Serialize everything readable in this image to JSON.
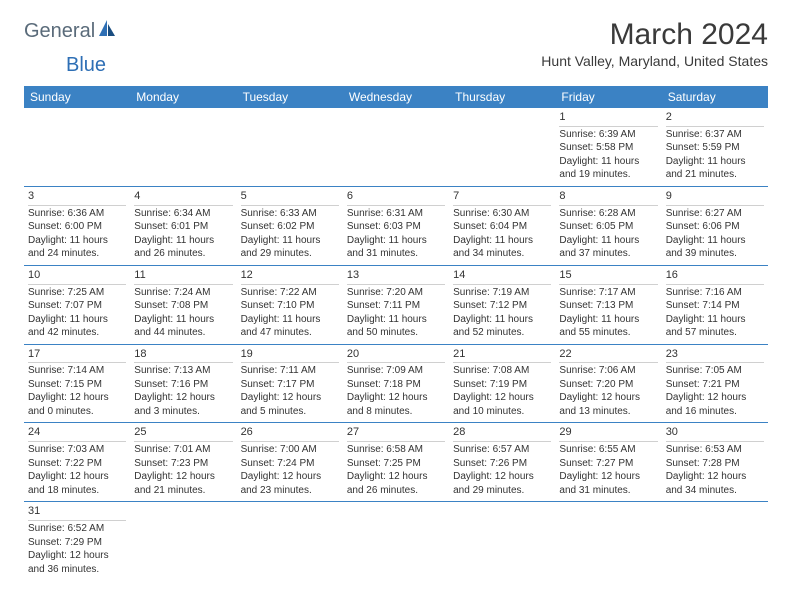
{
  "logo": {
    "text1": "General",
    "text2": "Blue"
  },
  "title": "March 2024",
  "location": "Hunt Valley, Maryland, United States",
  "dayHeaders": [
    "Sunday",
    "Monday",
    "Tuesday",
    "Wednesday",
    "Thursday",
    "Friday",
    "Saturday"
  ],
  "colors": {
    "headerBg": "#3b82c4",
    "headerText": "#ffffff",
    "border": "#3b82c4",
    "text": "#333333",
    "logoGray": "#5a6b7a",
    "logoBlue": "#2e6fb5"
  },
  "weeks": [
    [
      {
        "n": "",
        "empty": true
      },
      {
        "n": "",
        "empty": true
      },
      {
        "n": "",
        "empty": true
      },
      {
        "n": "",
        "empty": true
      },
      {
        "n": "",
        "empty": true
      },
      {
        "n": "1",
        "sun": "Sunrise: 6:39 AM",
        "set": "Sunset: 5:58 PM",
        "day": "Daylight: 11 hours and 19 minutes."
      },
      {
        "n": "2",
        "sun": "Sunrise: 6:37 AM",
        "set": "Sunset: 5:59 PM",
        "day": "Daylight: 11 hours and 21 minutes."
      }
    ],
    [
      {
        "n": "3",
        "sun": "Sunrise: 6:36 AM",
        "set": "Sunset: 6:00 PM",
        "day": "Daylight: 11 hours and 24 minutes."
      },
      {
        "n": "4",
        "sun": "Sunrise: 6:34 AM",
        "set": "Sunset: 6:01 PM",
        "day": "Daylight: 11 hours and 26 minutes."
      },
      {
        "n": "5",
        "sun": "Sunrise: 6:33 AM",
        "set": "Sunset: 6:02 PM",
        "day": "Daylight: 11 hours and 29 minutes."
      },
      {
        "n": "6",
        "sun": "Sunrise: 6:31 AM",
        "set": "Sunset: 6:03 PM",
        "day": "Daylight: 11 hours and 31 minutes."
      },
      {
        "n": "7",
        "sun": "Sunrise: 6:30 AM",
        "set": "Sunset: 6:04 PM",
        "day": "Daylight: 11 hours and 34 minutes."
      },
      {
        "n": "8",
        "sun": "Sunrise: 6:28 AM",
        "set": "Sunset: 6:05 PM",
        "day": "Daylight: 11 hours and 37 minutes."
      },
      {
        "n": "9",
        "sun": "Sunrise: 6:27 AM",
        "set": "Sunset: 6:06 PM",
        "day": "Daylight: 11 hours and 39 minutes."
      }
    ],
    [
      {
        "n": "10",
        "sun": "Sunrise: 7:25 AM",
        "set": "Sunset: 7:07 PM",
        "day": "Daylight: 11 hours and 42 minutes."
      },
      {
        "n": "11",
        "sun": "Sunrise: 7:24 AM",
        "set": "Sunset: 7:08 PM",
        "day": "Daylight: 11 hours and 44 minutes."
      },
      {
        "n": "12",
        "sun": "Sunrise: 7:22 AM",
        "set": "Sunset: 7:10 PM",
        "day": "Daylight: 11 hours and 47 minutes."
      },
      {
        "n": "13",
        "sun": "Sunrise: 7:20 AM",
        "set": "Sunset: 7:11 PM",
        "day": "Daylight: 11 hours and 50 minutes."
      },
      {
        "n": "14",
        "sun": "Sunrise: 7:19 AM",
        "set": "Sunset: 7:12 PM",
        "day": "Daylight: 11 hours and 52 minutes."
      },
      {
        "n": "15",
        "sun": "Sunrise: 7:17 AM",
        "set": "Sunset: 7:13 PM",
        "day": "Daylight: 11 hours and 55 minutes."
      },
      {
        "n": "16",
        "sun": "Sunrise: 7:16 AM",
        "set": "Sunset: 7:14 PM",
        "day": "Daylight: 11 hours and 57 minutes."
      }
    ],
    [
      {
        "n": "17",
        "sun": "Sunrise: 7:14 AM",
        "set": "Sunset: 7:15 PM",
        "day": "Daylight: 12 hours and 0 minutes."
      },
      {
        "n": "18",
        "sun": "Sunrise: 7:13 AM",
        "set": "Sunset: 7:16 PM",
        "day": "Daylight: 12 hours and 3 minutes."
      },
      {
        "n": "19",
        "sun": "Sunrise: 7:11 AM",
        "set": "Sunset: 7:17 PM",
        "day": "Daylight: 12 hours and 5 minutes."
      },
      {
        "n": "20",
        "sun": "Sunrise: 7:09 AM",
        "set": "Sunset: 7:18 PM",
        "day": "Daylight: 12 hours and 8 minutes."
      },
      {
        "n": "21",
        "sun": "Sunrise: 7:08 AM",
        "set": "Sunset: 7:19 PM",
        "day": "Daylight: 12 hours and 10 minutes."
      },
      {
        "n": "22",
        "sun": "Sunrise: 7:06 AM",
        "set": "Sunset: 7:20 PM",
        "day": "Daylight: 12 hours and 13 minutes."
      },
      {
        "n": "23",
        "sun": "Sunrise: 7:05 AM",
        "set": "Sunset: 7:21 PM",
        "day": "Daylight: 12 hours and 16 minutes."
      }
    ],
    [
      {
        "n": "24",
        "sun": "Sunrise: 7:03 AM",
        "set": "Sunset: 7:22 PM",
        "day": "Daylight: 12 hours and 18 minutes."
      },
      {
        "n": "25",
        "sun": "Sunrise: 7:01 AM",
        "set": "Sunset: 7:23 PM",
        "day": "Daylight: 12 hours and 21 minutes."
      },
      {
        "n": "26",
        "sun": "Sunrise: 7:00 AM",
        "set": "Sunset: 7:24 PM",
        "day": "Daylight: 12 hours and 23 minutes."
      },
      {
        "n": "27",
        "sun": "Sunrise: 6:58 AM",
        "set": "Sunset: 7:25 PM",
        "day": "Daylight: 12 hours and 26 minutes."
      },
      {
        "n": "28",
        "sun": "Sunrise: 6:57 AM",
        "set": "Sunset: 7:26 PM",
        "day": "Daylight: 12 hours and 29 minutes."
      },
      {
        "n": "29",
        "sun": "Sunrise: 6:55 AM",
        "set": "Sunset: 7:27 PM",
        "day": "Daylight: 12 hours and 31 minutes."
      },
      {
        "n": "30",
        "sun": "Sunrise: 6:53 AM",
        "set": "Sunset: 7:28 PM",
        "day": "Daylight: 12 hours and 34 minutes."
      }
    ],
    [
      {
        "n": "31",
        "sun": "Sunrise: 6:52 AM",
        "set": "Sunset: 7:29 PM",
        "day": "Daylight: 12 hours and 36 minutes."
      },
      {
        "n": "",
        "empty": true
      },
      {
        "n": "",
        "empty": true
      },
      {
        "n": "",
        "empty": true
      },
      {
        "n": "",
        "empty": true
      },
      {
        "n": "",
        "empty": true
      },
      {
        "n": "",
        "empty": true
      }
    ]
  ]
}
